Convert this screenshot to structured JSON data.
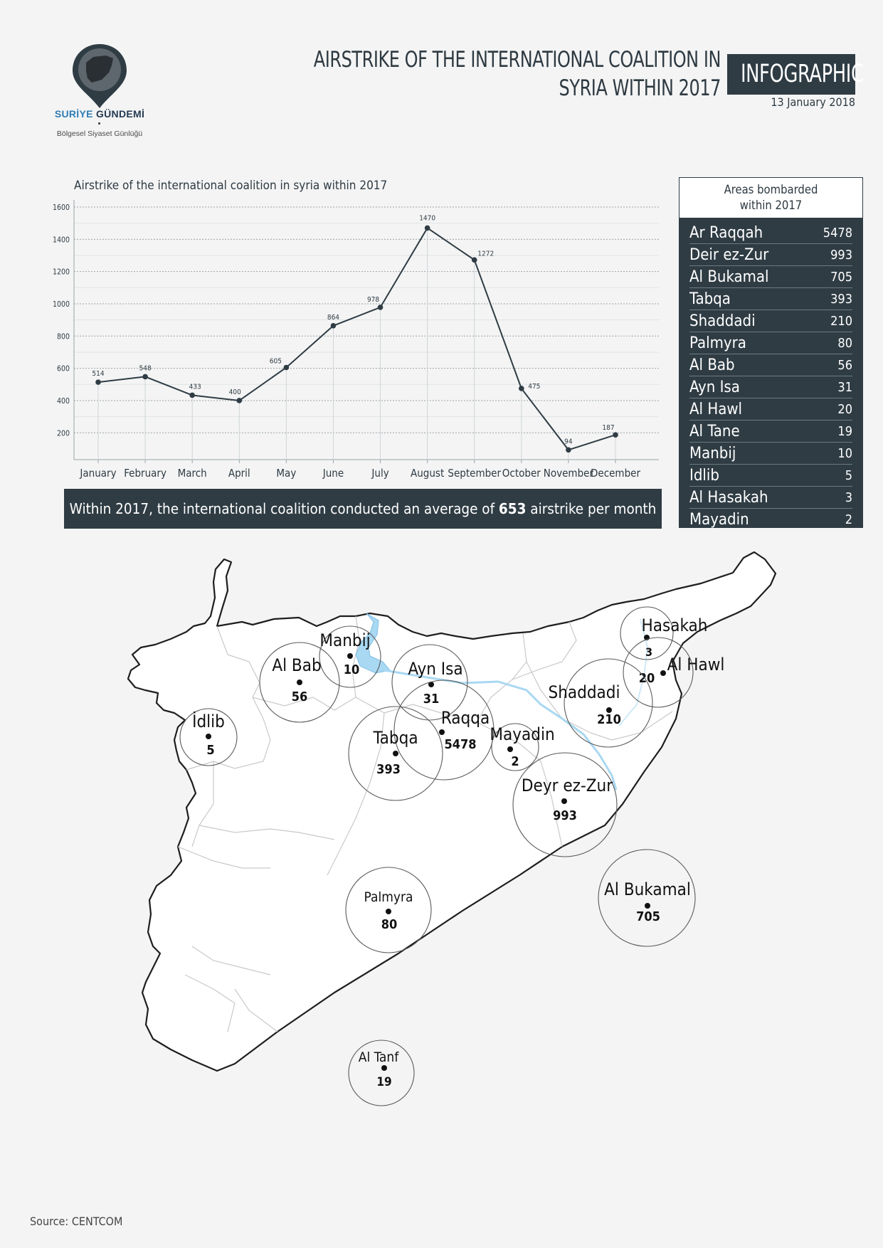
{
  "brand": {
    "name_part1": "SURİYE",
    "name_part2": "GÜNDEMİ",
    "tagline": "Bölgesel Siyaset Günlüğü"
  },
  "header": {
    "title_line1": "AIRSTRIKE OF THE INTERNATIONAL COALITION IN",
    "title_line2": "SYRIA WITHIN 2017",
    "badge": "INFOGRAPHIC",
    "date": "13 January 2018"
  },
  "chart_data": {
    "type": "line",
    "title": "Airstrike of the international coalition in syria within 2017",
    "categories": [
      "January",
      "February",
      "March",
      "April",
      "May",
      "June",
      "July",
      "August",
      "September",
      "October",
      "November",
      "December"
    ],
    "values": [
      514,
      548,
      433,
      400,
      605,
      864,
      978,
      1470,
      1272,
      475,
      94,
      187
    ],
    "yticks": [
      200,
      400,
      600,
      800,
      1000,
      1200,
      1400,
      1600
    ],
    "ylim": [
      60,
      1600
    ],
    "grid": true,
    "xlabel": "",
    "ylabel": "",
    "line_color": "#2f3c44"
  },
  "summary": {
    "pre": "Within 2017, the international coalition conducted an average of ",
    "value": "653",
    "post": " airstrike per month"
  },
  "areas": {
    "title_line1": "Areas bombarded",
    "title_line2": "within 2017",
    "rows": [
      {
        "name": "Ar Raqqah",
        "value": "5478"
      },
      {
        "name": "Deir ez-Zur",
        "value": "993"
      },
      {
        "name": "Al Bukamal",
        "value": "705"
      },
      {
        "name": "Tabqa",
        "value": "393"
      },
      {
        "name": "Shaddadi",
        "value": "210"
      },
      {
        "name": "Palmyra",
        "value": "80"
      },
      {
        "name": "Al Bab",
        "value": "56"
      },
      {
        "name": "Ayn Isa",
        "value": "31"
      },
      {
        "name": "Al Hawl",
        "value": "20"
      },
      {
        "name": "Al Tane",
        "value": "19"
      },
      {
        "name": "Manbij",
        "value": "10"
      },
      {
        "name": "Idlib",
        "value": "5"
      },
      {
        "name": "Al Hasakah",
        "value": "3"
      },
      {
        "name": "Mayadin",
        "value": "2"
      }
    ]
  },
  "map": {
    "cities": [
      {
        "name": "Hasakah",
        "value": "3"
      },
      {
        "name": "Al Hawl",
        "value": "20"
      },
      {
        "name": "Manbij",
        "value": "10"
      },
      {
        "name": "Al Bab",
        "value": "56"
      },
      {
        "name": "Ayn Isa",
        "value": "31"
      },
      {
        "name": "Shaddadi",
        "value": "210"
      },
      {
        "name": "İdlib",
        "value": "5"
      },
      {
        "name": "Raqqa",
        "value": "5478"
      },
      {
        "name": "Tabqa",
        "value": "393"
      },
      {
        "name": "Mayadin",
        "value": "2"
      },
      {
        "name": "Deyr ez-Zur",
        "value": "993"
      },
      {
        "name": "Al Bukamal",
        "value": "705"
      },
      {
        "name": "Palmyra",
        "value": "80"
      },
      {
        "name": "Al Tanf",
        "value": "19"
      }
    ]
  },
  "source": "Source: CENTCOM"
}
